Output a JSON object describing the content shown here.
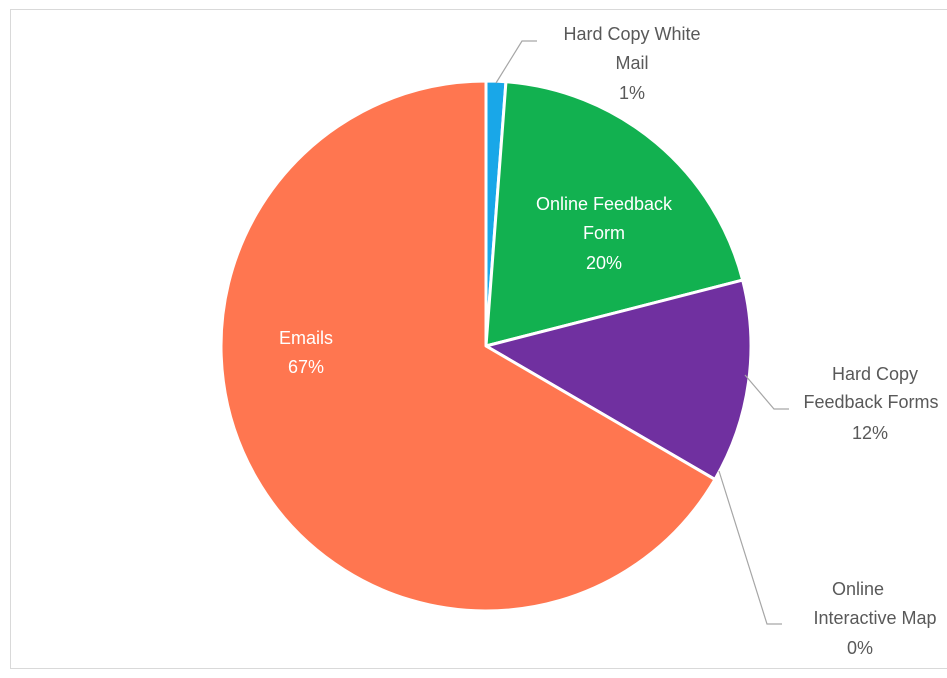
{
  "chart_data": {
    "type": "pie",
    "title": "",
    "series": [
      {
        "name": "",
        "slices": [
          {
            "label_lines": [
              "Hard Copy White",
              "Mail"
            ],
            "percent_label": "1%",
            "value": 1.2,
            "color": "#19A7E8"
          },
          {
            "label_lines": [
              "Online Feedback",
              "Form"
            ],
            "percent_label": "20%",
            "value": 19.8,
            "color": "#12B150"
          },
          {
            "label_lines": [
              "Hard Copy",
              "Feedback Forms"
            ],
            "percent_label": "12%",
            "value": 12.4,
            "color": "#7030A0"
          },
          {
            "label_lines": [
              "Online",
              "Interactive Map"
            ],
            "percent_label": "0%",
            "value": 0.0,
            "color": "#4472C4"
          },
          {
            "label_lines": [
              "Emails"
            ],
            "percent_label": "67%",
            "value": 66.6,
            "color": "#FF7650"
          }
        ]
      }
    ],
    "legend": "none",
    "start_angle_deg": 0,
    "direction": "clockwise"
  }
}
